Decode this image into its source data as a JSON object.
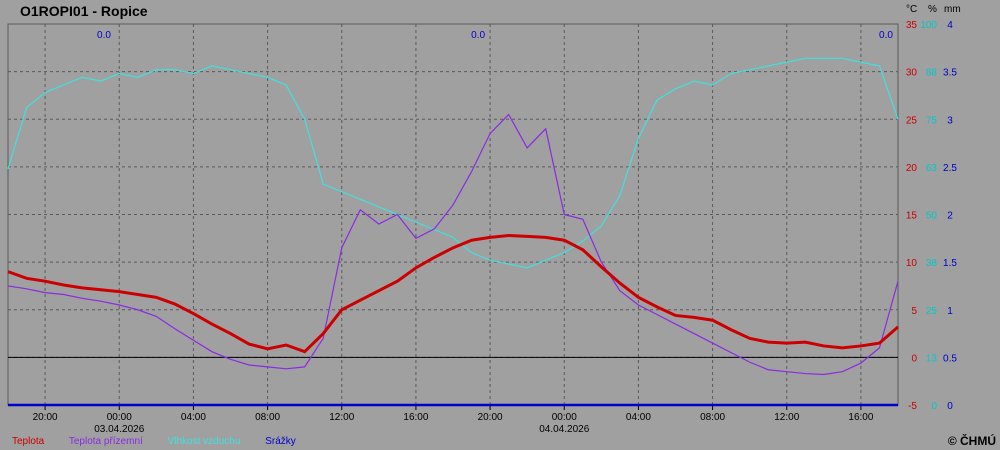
{
  "title": "O1ROPI01 - Ropice",
  "copyright": "© ČHMÚ",
  "colors": {
    "background": "#a0a0a0",
    "grid": "#5a5a5a",
    "temperature": "#cc0000",
    "ground_temperature": "#8a2be2",
    "humidity": "#40e0e0",
    "precipitation": "#0000cc",
    "axis_temp": "#cc0000",
    "axis_humidity": "#00c8c8",
    "axis_precip": "#0000cc"
  },
  "units": {
    "temp": "°C",
    "humidity": "%",
    "precip": "mm"
  },
  "chart_data": {
    "type": "line",
    "x_ticks": [
      "20:00",
      "00:00",
      "04:00",
      "08:00",
      "12:00",
      "16:00",
      "20:00",
      "00:00",
      "04:00",
      "08:00",
      "12:00",
      "16:00"
    ],
    "date_labels": [
      {
        "at": "00:00",
        "text": "03.04.2026",
        "index": 1
      },
      {
        "at": "00:00",
        "text": "04.04.2026",
        "index": 7
      }
    ],
    "axes": {
      "temp": {
        "range": [
          -5,
          35
        ],
        "ticks": [
          "35",
          "30",
          "25",
          "20",
          "15",
          "10",
          "5",
          "0",
          "-5"
        ]
      },
      "humidity": {
        "range": [
          0,
          100
        ],
        "ticks": [
          "100",
          "88",
          "75",
          "63",
          "50",
          "38",
          "25",
          "13",
          "0"
        ]
      },
      "precip": {
        "range": [
          0,
          4
        ],
        "ticks": [
          "4",
          "3.5",
          "3",
          "2.5",
          "2",
          "1.5",
          "1",
          "0.5",
          "0"
        ]
      }
    },
    "precip_totals": [
      "0.0",
      "0.0",
      "0.0"
    ],
    "x_range_hours": [
      -26,
      22
    ],
    "series": [
      {
        "name": "Teplota",
        "points": [
          [
            -26,
            9.0
          ],
          [
            -25,
            8.3
          ],
          [
            -24,
            8.0
          ],
          [
            -23,
            7.6
          ],
          [
            -22,
            7.3
          ],
          [
            -21,
            7.1
          ],
          [
            -20,
            6.9
          ],
          [
            -19,
            6.6
          ],
          [
            -18,
            6.3
          ],
          [
            -17,
            5.6
          ],
          [
            -16,
            4.6
          ],
          [
            -15,
            3.5
          ],
          [
            -14,
            2.5
          ],
          [
            -13,
            1.4
          ],
          [
            -12,
            0.9
          ],
          [
            -11,
            1.3
          ],
          [
            -10,
            0.6
          ],
          [
            -9,
            2.5
          ],
          [
            -8,
            5.0
          ],
          [
            -7,
            6.0
          ],
          [
            -6,
            7.0
          ],
          [
            -5,
            8.0
          ],
          [
            -4,
            9.4
          ],
          [
            -3,
            10.5
          ],
          [
            -2,
            11.5
          ],
          [
            -1,
            12.3
          ],
          [
            0,
            12.6
          ],
          [
            1,
            12.8
          ],
          [
            2,
            12.7
          ],
          [
            3,
            12.6
          ],
          [
            4,
            12.3
          ],
          [
            5,
            11.3
          ],
          [
            6,
            9.5
          ],
          [
            7,
            7.8
          ],
          [
            8,
            6.3
          ],
          [
            9,
            5.3
          ],
          [
            10,
            4.4
          ],
          [
            11,
            4.2
          ],
          [
            12,
            3.9
          ],
          [
            13,
            2.9
          ],
          [
            14,
            2.0
          ],
          [
            15,
            1.6
          ],
          [
            16,
            1.5
          ],
          [
            17,
            1.6
          ],
          [
            18,
            1.2
          ],
          [
            19,
            1.0
          ],
          [
            20,
            1.2
          ],
          [
            21,
            1.5
          ],
          [
            22,
            3.2
          ]
        ]
      },
      {
        "name": "Teplota přízemní",
        "points": [
          [
            -26,
            7.5
          ],
          [
            -25,
            7.2
          ],
          [
            -24,
            6.8
          ],
          [
            -23,
            6.6
          ],
          [
            -22,
            6.2
          ],
          [
            -21,
            5.9
          ],
          [
            -20,
            5.5
          ],
          [
            -19,
            5.0
          ],
          [
            -18,
            4.3
          ],
          [
            -17,
            3.0
          ],
          [
            -16,
            1.8
          ],
          [
            -15,
            0.6
          ],
          [
            -14,
            -0.2
          ],
          [
            -13,
            -0.8
          ],
          [
            -12,
            -1.0
          ],
          [
            -11,
            -1.2
          ],
          [
            -10,
            -1.0
          ],
          [
            -9,
            2.0
          ],
          [
            -8,
            11.5
          ],
          [
            -7,
            15.5
          ],
          [
            -6,
            14.0
          ],
          [
            -5,
            15.0
          ],
          [
            -4,
            12.5
          ],
          [
            -3,
            13.5
          ],
          [
            -2,
            16.0
          ],
          [
            -1,
            19.5
          ],
          [
            0,
            23.5
          ],
          [
            1,
            25.5
          ],
          [
            2,
            22.0
          ],
          [
            3,
            24.0
          ],
          [
            4,
            15.0
          ],
          [
            5,
            14.5
          ],
          [
            6,
            10.0
          ],
          [
            7,
            7.0
          ],
          [
            8,
            5.5
          ],
          [
            9,
            4.5
          ],
          [
            10,
            3.5
          ],
          [
            11,
            2.5
          ],
          [
            12,
            1.5
          ],
          [
            13,
            0.5
          ],
          [
            14,
            -0.5
          ],
          [
            15,
            -1.3
          ],
          [
            16,
            -1.5
          ],
          [
            17,
            -1.7
          ],
          [
            18,
            -1.8
          ],
          [
            19,
            -1.5
          ],
          [
            20,
            -0.6
          ],
          [
            21,
            1.0
          ],
          [
            22,
            8.0
          ]
        ]
      },
      {
        "name": "Vlhkost vzduchu",
        "points": [
          [
            -26,
            62
          ],
          [
            -25,
            78
          ],
          [
            -24,
            82
          ],
          [
            -23,
            84
          ],
          [
            -22,
            86
          ],
          [
            -21,
            85
          ],
          [
            -20,
            87
          ],
          [
            -19,
            86
          ],
          [
            -18,
            88
          ],
          [
            -17,
            88
          ],
          [
            -16,
            87
          ],
          [
            -15,
            89
          ],
          [
            -14,
            88
          ],
          [
            -13,
            87
          ],
          [
            -12,
            86
          ],
          [
            -11,
            84
          ],
          [
            -10,
            75
          ],
          [
            -9,
            58
          ],
          [
            -8,
            56
          ],
          [
            -7,
            54
          ],
          [
            -6,
            52
          ],
          [
            -5,
            50
          ],
          [
            -4,
            48
          ],
          [
            -3,
            46
          ],
          [
            -2,
            44
          ],
          [
            -1,
            40
          ],
          [
            0,
            38
          ],
          [
            1,
            37
          ],
          [
            2,
            36
          ],
          [
            3,
            38
          ],
          [
            4,
            40
          ],
          [
            5,
            43
          ],
          [
            6,
            47
          ],
          [
            7,
            55
          ],
          [
            8,
            70
          ],
          [
            9,
            80
          ],
          [
            10,
            83
          ],
          [
            11,
            85
          ],
          [
            12,
            84
          ],
          [
            13,
            87
          ],
          [
            14,
            88
          ],
          [
            15,
            89
          ],
          [
            16,
            90
          ],
          [
            17,
            91
          ],
          [
            18,
            91
          ],
          [
            19,
            91
          ],
          [
            20,
            90
          ],
          [
            21,
            89
          ],
          [
            22,
            75
          ]
        ]
      },
      {
        "name": "Srážky",
        "points": [
          [
            -26,
            0
          ],
          [
            22,
            0
          ]
        ]
      }
    ]
  }
}
